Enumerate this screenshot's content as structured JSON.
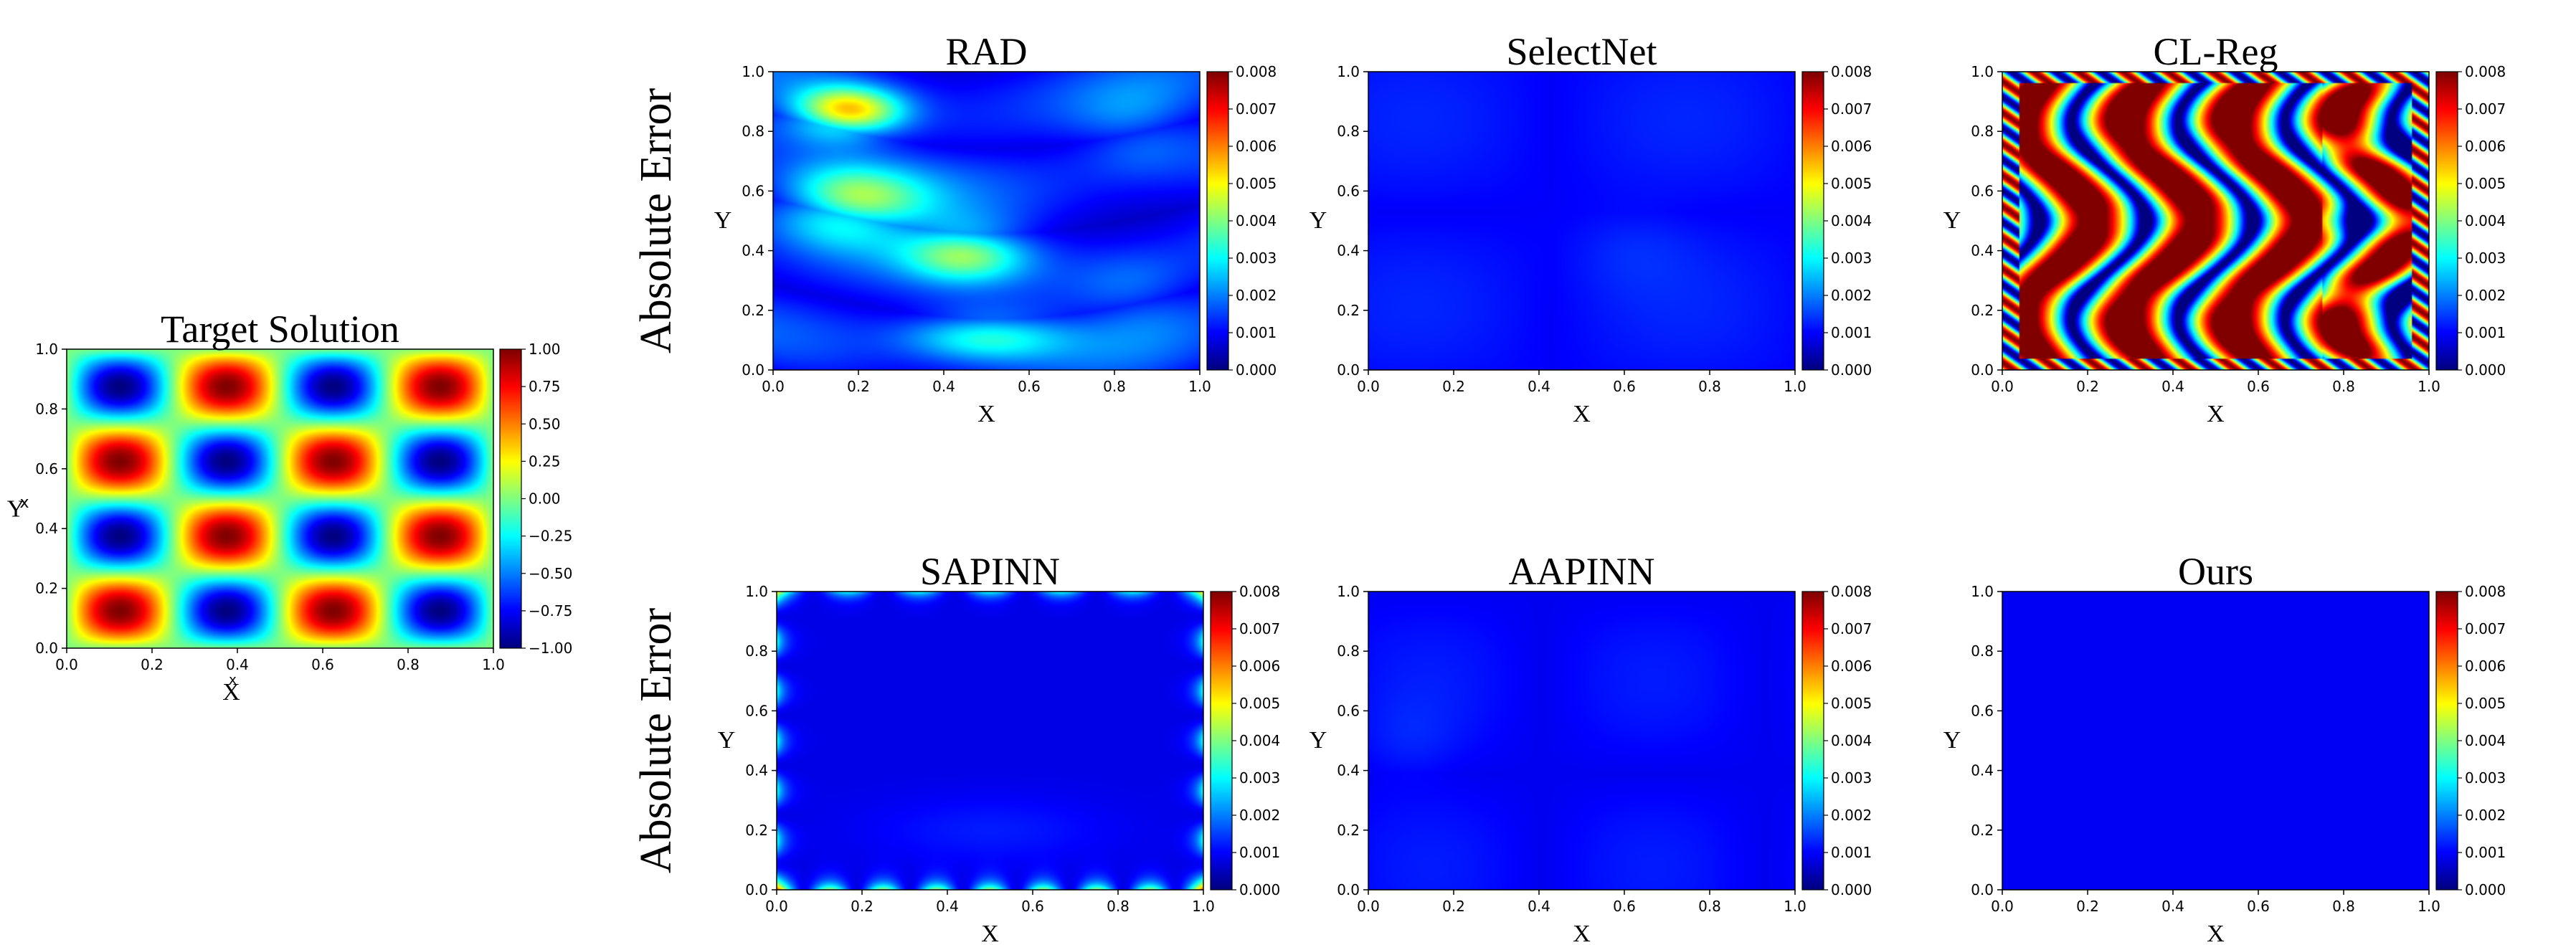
{
  "chart_data": [
    {
      "type": "heatmap",
      "title": "Target Solution",
      "xlabel": "X",
      "ylabel": "Y",
      "xlim": [
        0.0,
        1.0
      ],
      "ylim": [
        0.0,
        1.0
      ],
      "x_ticks": [
        "0.0",
        "0.2",
        "0.4",
        "0.6",
        "0.8",
        "1.0"
      ],
      "y_ticks": [
        "0.0",
        "0.2",
        "0.4",
        "0.6",
        "0.8",
        "1.0"
      ],
      "colormap": "jet",
      "colorbar_range": [
        -1.0,
        1.0
      ],
      "colorbar_ticks": [
        "1.00",
        "0.75",
        "0.50",
        "0.25",
        "0.00",
        "−0.25",
        "−0.50",
        "−0.75",
        "−1.00"
      ],
      "field": "sin(4πx)·sin(4πy)",
      "stray_labels": [
        "x",
        "x"
      ]
    },
    {
      "type": "heatmap",
      "title": "RAD",
      "row_label": "Absolute Error",
      "xlabel": "X",
      "ylabel": "Y",
      "xlim": [
        0.0,
        1.0
      ],
      "ylim": [
        0.0,
        1.0
      ],
      "colormap": "jet",
      "colorbar_range": [
        0.0,
        0.008
      ],
      "colorbar_ticks": [
        "0.008",
        "0.007",
        "0.006",
        "0.005",
        "0.004",
        "0.003",
        "0.002",
        "0.001",
        "0.000"
      ],
      "hotspots": [
        {
          "x": 0.17,
          "y": 0.86,
          "value": 0.0063
        },
        {
          "x": 0.2,
          "y": 0.55,
          "value": 0.0048
        },
        {
          "x": 0.45,
          "y": 0.4,
          "value": 0.0038
        },
        {
          "x": 0.5,
          "y": 0.12,
          "value": 0.0035
        },
        {
          "x": 0.85,
          "y": 0.8,
          "value": 0.0015
        }
      ]
    },
    {
      "type": "heatmap",
      "title": "SelectNet",
      "xlabel": "X",
      "ylabel": "Y",
      "xlim": [
        0.0,
        1.0
      ],
      "ylim": [
        0.0,
        1.0
      ],
      "colormap": "jet",
      "colorbar_range": [
        0.0,
        0.008
      ],
      "colorbar_ticks": [
        "0.008",
        "0.007",
        "0.006",
        "0.005",
        "0.004",
        "0.003",
        "0.002",
        "0.001",
        "0.000"
      ],
      "max_error": 0.0008
    },
    {
      "type": "heatmap",
      "title": "CL-Reg",
      "xlabel": "X",
      "ylabel": "Y",
      "xlim": [
        0.0,
        1.0
      ],
      "ylim": [
        0.0,
        1.0
      ],
      "colormap": "jet",
      "colorbar_range": [
        0.0,
        0.008
      ],
      "colorbar_ticks": [
        "0.008",
        "0.007",
        "0.006",
        "0.005",
        "0.004",
        "0.003",
        "0.002",
        "0.001",
        "0.000"
      ],
      "max_error": 0.008
    },
    {
      "type": "heatmap",
      "title": "SAPINN",
      "row_label": "Absolute Error",
      "xlabel": "X",
      "ylabel": "Y",
      "xlim": [
        0.0,
        1.0
      ],
      "ylim": [
        0.0,
        1.0
      ],
      "colormap": "jet",
      "colorbar_range": [
        0.0,
        0.008
      ],
      "colorbar_ticks": [
        "0.008",
        "0.007",
        "0.006",
        "0.005",
        "0.004",
        "0.003",
        "0.002",
        "0.001",
        "0.000"
      ],
      "max_error": 0.004
    },
    {
      "type": "heatmap",
      "title": "AAPINN",
      "xlabel": "X",
      "ylabel": "Y",
      "xlim": [
        0.0,
        1.0
      ],
      "ylim": [
        0.0,
        1.0
      ],
      "colormap": "jet",
      "colorbar_range": [
        0.0,
        0.008
      ],
      "colorbar_ticks": [
        "0.008",
        "0.007",
        "0.006",
        "0.005",
        "0.004",
        "0.003",
        "0.002",
        "0.001",
        "0.000"
      ],
      "max_error": 0.0008
    },
    {
      "type": "heatmap",
      "title": "Ours",
      "xlabel": "X",
      "ylabel": "Y",
      "xlim": [
        0.0,
        1.0
      ],
      "ylim": [
        0.0,
        1.0
      ],
      "colormap": "jet",
      "colorbar_range": [
        0.0,
        0.008
      ],
      "colorbar_ticks": [
        "0.008",
        "0.007",
        "0.006",
        "0.005",
        "0.004",
        "0.003",
        "0.002",
        "0.001",
        "0.000"
      ],
      "max_error": 0.0003
    }
  ]
}
